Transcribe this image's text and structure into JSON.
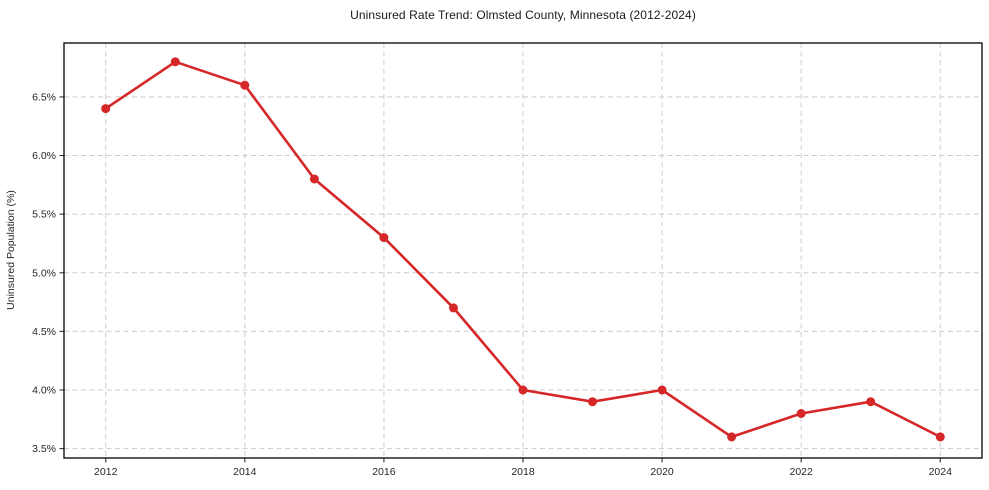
{
  "chart_data": {
    "type": "line",
    "title": "Uninsured Rate Trend: Olmsted County, Minnesota (2012-2024)",
    "xlabel": "",
    "ylabel": "Uninsured Population (%)",
    "x": [
      2012,
      2013,
      2014,
      2015,
      2016,
      2017,
      2018,
      2019,
      2020,
      2021,
      2022,
      2023,
      2024
    ],
    "values": [
      6.4,
      6.8,
      6.6,
      5.8,
      5.3,
      4.7,
      4.0,
      3.9,
      4.0,
      3.6,
      3.8,
      3.9,
      3.6
    ],
    "xlim": [
      2011.4,
      2024.6
    ],
    "ylim": [
      3.42,
      6.96
    ],
    "xticks": [
      2012,
      2014,
      2016,
      2018,
      2020,
      2022,
      2024
    ],
    "xtick_labels": [
      "2012",
      "2014",
      "2016",
      "2018",
      "2020",
      "2022",
      "2024"
    ],
    "yticks": [
      3.5,
      4.0,
      4.5,
      5.0,
      5.5,
      6.0,
      6.5
    ],
    "ytick_labels": [
      "3.5%",
      "4.0%",
      "4.5%",
      "5.0%",
      "5.5%",
      "6.0%",
      "6.5%"
    ],
    "grid": true,
    "legend_position": "none",
    "marker": "circle",
    "colors": {
      "line": "#d62728",
      "marker": "#d62728",
      "grid": "#cccccc",
      "spine": "#000000",
      "tick": "#333333",
      "text": "#262626",
      "background": "#ffffff"
    }
  }
}
